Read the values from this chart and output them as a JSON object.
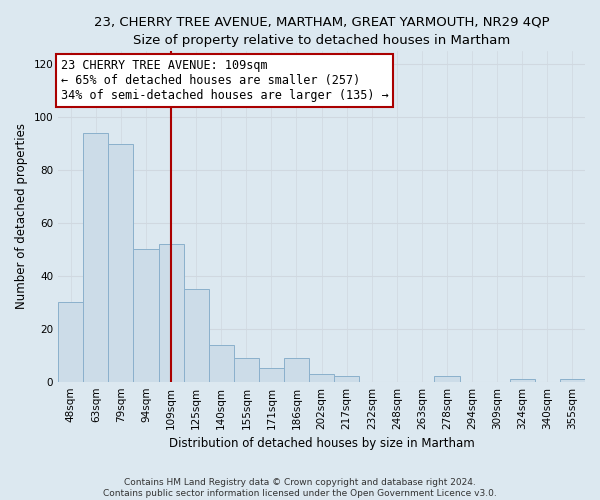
{
  "title": "23, CHERRY TREE AVENUE, MARTHAM, GREAT YARMOUTH, NR29 4QP",
  "subtitle": "Size of property relative to detached houses in Martham",
  "xlabel": "Distribution of detached houses by size in Martham",
  "ylabel": "Number of detached properties",
  "bar_labels": [
    "48sqm",
    "63sqm",
    "79sqm",
    "94sqm",
    "109sqm",
    "125sqm",
    "140sqm",
    "155sqm",
    "171sqm",
    "186sqm",
    "202sqm",
    "217sqm",
    "232sqm",
    "248sqm",
    "263sqm",
    "278sqm",
    "294sqm",
    "309sqm",
    "324sqm",
    "340sqm",
    "355sqm"
  ],
  "bar_values": [
    30,
    94,
    90,
    50,
    52,
    35,
    14,
    9,
    5,
    9,
    3,
    2,
    0,
    0,
    0,
    2,
    0,
    0,
    1,
    0,
    1
  ],
  "bar_color": "#ccdce8",
  "bar_edge_color": "#8ab0cc",
  "vline_x_idx": 4,
  "vline_color": "#aa0000",
  "annotation_line1": "23 CHERRY TREE AVENUE: 109sqm",
  "annotation_line2": "← 65% of detached houses are smaller (257)",
  "annotation_line3": "34% of semi-detached houses are larger (135) →",
  "annotation_box_color": "#ffffff",
  "annotation_box_edge": "#aa0000",
  "ylim": [
    0,
    125
  ],
  "yticks": [
    0,
    20,
    40,
    60,
    80,
    100,
    120
  ],
  "grid_color": "#d0d8e0",
  "footer_line1": "Contains HM Land Registry data © Crown copyright and database right 2024.",
  "footer_line2": "Contains public sector information licensed under the Open Government Licence v3.0.",
  "bg_color": "#dce8f0",
  "plot_bg_color": "#dce8f0",
  "title_fontsize": 9.5,
  "subtitle_fontsize": 9,
  "axis_label_fontsize": 8.5,
  "tick_fontsize": 7.5,
  "annotation_fontsize": 8.5,
  "footer_fontsize": 6.5
}
